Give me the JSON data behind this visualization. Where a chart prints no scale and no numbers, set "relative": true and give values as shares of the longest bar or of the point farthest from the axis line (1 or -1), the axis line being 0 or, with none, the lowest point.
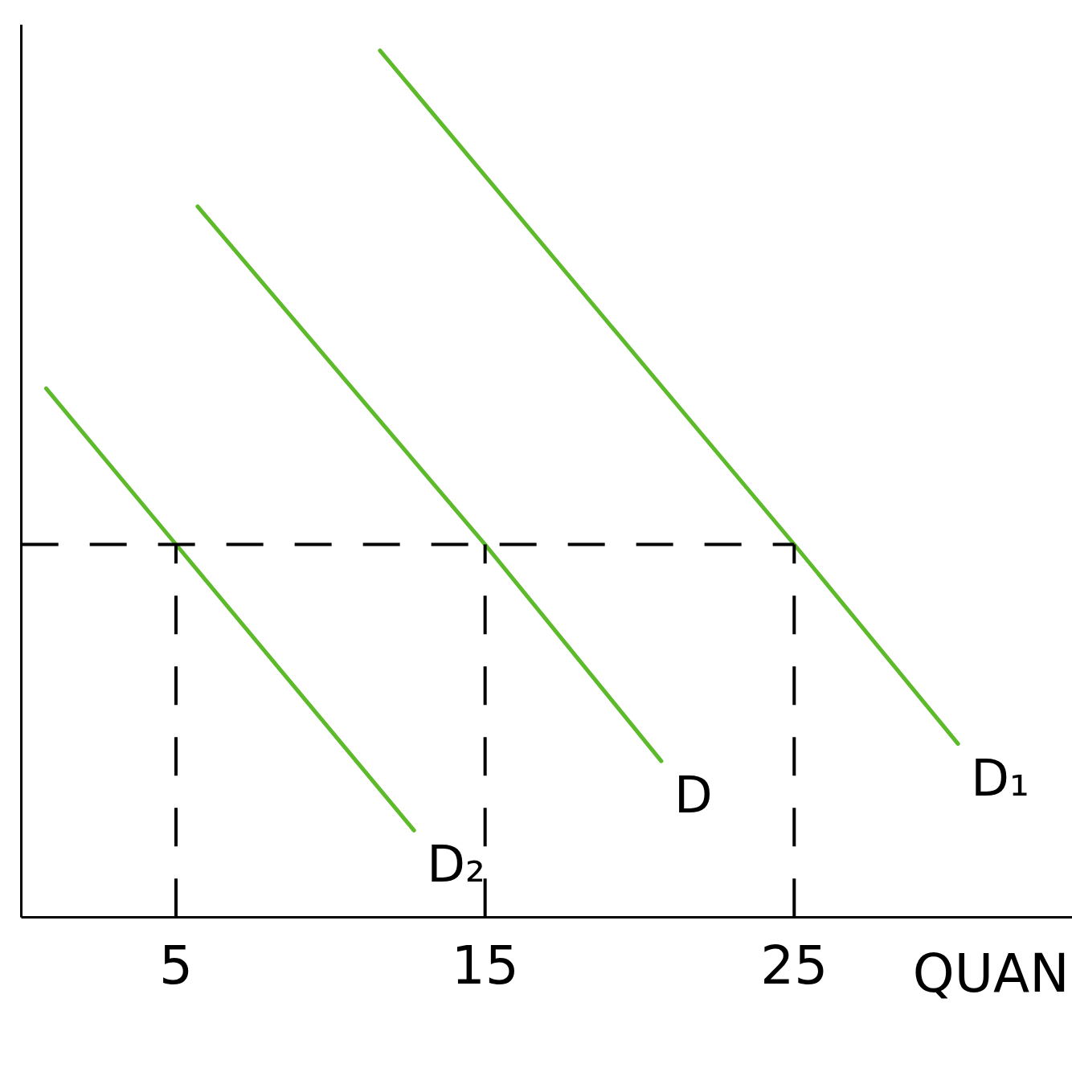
{
  "chart_data": {
    "type": "line",
    "relative": true,
    "xlabel": "QUAN",
    "xlim": [
      0,
      34
    ],
    "xticks": [
      5,
      15,
      25
    ],
    "series": [
      {
        "name": "D₂",
        "color": "#5dba2a",
        "x": [
          0.8,
          5,
          12.7
        ],
        "values": [
          0.61,
          0.43,
          0.1
        ]
      },
      {
        "name": "D",
        "color": "#5dba2a",
        "x": [
          5.7,
          15,
          20.7
        ],
        "values": [
          0.82,
          0.43,
          0.18
        ]
      },
      {
        "name": "D₁",
        "color": "#5dba2a",
        "x": [
          11.6,
          25,
          30.3
        ],
        "values": [
          1.0,
          0.43,
          0.2
        ]
      },
      {
        "color": "#000000",
        "line_style": "dashed",
        "x": [
          0,
          25
        ],
        "values": [
          0.43,
          0.43
        ]
      },
      {
        "color": "#000000",
        "line_style": "dashed",
        "x": [
          5,
          5
        ],
        "values": [
          0,
          0.43
        ]
      },
      {
        "color": "#000000",
        "line_style": "dashed",
        "x": [
          15,
          15
        ],
        "values": [
          0,
          0.43
        ]
      },
      {
        "color": "#000000",
        "line_style": "dashed",
        "x": [
          25,
          25
        ],
        "values": [
          0,
          0.43
        ]
      }
    ]
  }
}
